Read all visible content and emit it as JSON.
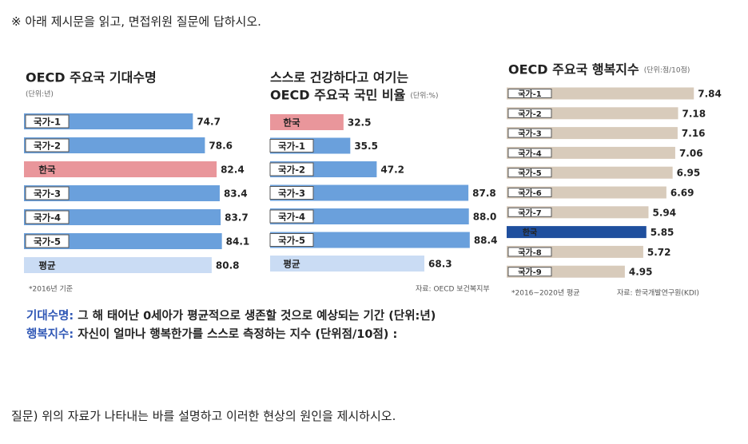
{
  "instruction": "※ 아래 제시문을 읽고, 면접위원 질문에 답하시오.",
  "chart_data": [
    {
      "type": "bar",
      "title": [
        "OECD 주요국 기대수명"
      ],
      "unit": "(단위:년)",
      "categories": [
        "국가-1",
        "국가-2",
        "한국",
        "국가-3",
        "국가-4",
        "국가-5",
        "평균"
      ],
      "values": [
        74.7,
        78.6,
        82.4,
        83.4,
        83.7,
        84.1,
        80.8
      ],
      "color": "#6aa0dc",
      "colors": [
        "#6aa0dc",
        "#6aa0dc",
        "#e9969b",
        "#6aa0dc",
        "#6aa0dc",
        "#6aa0dc",
        "#cadcf4"
      ],
      "xlim": [
        20,
        86
      ],
      "note": "*2016년 기준"
    },
    {
      "type": "bar",
      "title": [
        "스스로 건강하다고 여기는",
        "OECD 주요국 국민 비율"
      ],
      "unit": "(단위:%)",
      "categories": [
        "한국",
        "국가-1",
        "국가-2",
        "국가-3",
        "국가-4",
        "국가-5",
        "평균"
      ],
      "values": [
        32.5,
        35.5,
        47.2,
        87.8,
        88.0,
        88.4,
        68.3
      ],
      "value_labels": [
        "32.5",
        "35.5",
        "47.2",
        "87.8",
        "88.0",
        "88.4",
        "68.3"
      ],
      "color": "#6aa0dc",
      "colors": [
        "#e9969b",
        "#6aa0dc",
        "#6aa0dc",
        "#6aa0dc",
        "#6aa0dc",
        "#6aa0dc",
        "#cadcf4"
      ],
      "xlim": [
        0,
        92
      ],
      "source": "자료: OECD 보건복지부"
    },
    {
      "type": "bar",
      "title": [
        "OECD 주요국 행복지수"
      ],
      "unit": "(단위:점/10점)",
      "categories": [
        "국가-1",
        "국가-2",
        "국가-3",
        "국가-4",
        "국가-5",
        "국가-6",
        "국가-7",
        "한국",
        "국가-8",
        "국가-9"
      ],
      "values": [
        7.84,
        7.18,
        7.16,
        7.06,
        6.95,
        6.69,
        5.94,
        5.85,
        5.72,
        4.95
      ],
      "color": "#d8cbbb",
      "colors": [
        "#d8cbbb",
        "#d8cbbb",
        "#d8cbbb",
        "#d8cbbb",
        "#d8cbbb",
        "#d8cbbb",
        "#d8cbbb",
        "#1f4f9e",
        "#d8cbbb",
        "#d8cbbb"
      ],
      "xlim": [
        0,
        8.2
      ],
      "note": "*2016~2020년 평균",
      "source": "자료: 한국개발연구원(KDI)"
    }
  ],
  "definitions": [
    {
      "term": "기대수명:",
      "text": "그 해 태어난 0세아가 평균적으로 생존할 것으로 예상되는 기간 (단위:년)"
    },
    {
      "term": "행복지수:",
      "text": "자신이 얼마나 행복한가를 스스로 측정하는 지수 (단위점/10점) :"
    }
  ],
  "question": "질문) 위의 자료가 나타내는 바를 설명하고 이러한 현상의 원인을 제시하시오."
}
